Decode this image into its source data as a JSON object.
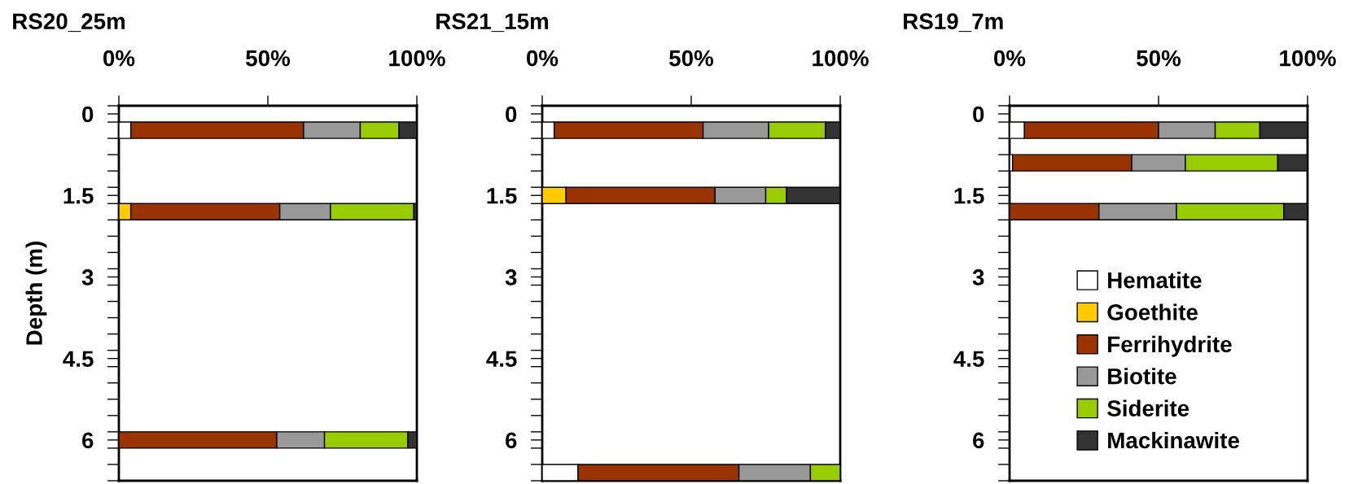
{
  "chart_data": [
    {
      "type": "bar",
      "orientation": "horizontal",
      "stacked": true,
      "title": "RS20_25m",
      "ylabel": "Depth (m)",
      "x": [
        0.3,
        1.8,
        6.0
      ],
      "xlim": [
        0,
        100
      ],
      "xticks": [
        {
          "value": 0,
          "label": "0%"
        },
        {
          "value": 50,
          "label": "50%"
        },
        {
          "value": 100,
          "label": "100%"
        }
      ],
      "ylim": [
        6.75,
        -0.15
      ],
      "yticks": [
        0,
        1.5,
        3,
        4.5,
        6,
        {
          "value": -0.15,
          "label": null
        },
        {
          "value": 0.15,
          "label": null
        },
        {
          "value": 0.45,
          "label": null
        },
        {
          "value": 0.75,
          "label": null
        },
        {
          "value": 1.05,
          "label": null
        },
        {
          "value": 1.35,
          "label": null
        },
        {
          "value": 1.65,
          "label": null
        },
        {
          "value": 1.95,
          "label": null
        },
        {
          "value": 2.25,
          "label": null
        },
        {
          "value": 2.55,
          "label": null
        },
        {
          "value": 2.85,
          "label": null
        },
        {
          "value": 3.15,
          "label": null
        },
        {
          "value": 3.45,
          "label": null
        },
        {
          "value": 3.75,
          "label": null
        },
        {
          "value": 4.05,
          "label": null
        },
        {
          "value": 4.35,
          "label": null
        },
        {
          "value": 4.65,
          "label": null
        },
        {
          "value": 4.95,
          "label": null
        },
        {
          "value": 5.25,
          "label": null
        },
        {
          "value": 5.55,
          "label": null
        },
        {
          "value": 5.85,
          "label": null
        },
        {
          "value": 6.15,
          "label": null
        },
        {
          "value": 6.45,
          "label": null
        },
        {
          "value": 6.75,
          "label": null
        }
      ],
      "series": [
        {
          "color": "#ffffff",
          "values": [
            4,
            null,
            null
          ]
        },
        {
          "color": "#ffcc00",
          "values": [
            null,
            4,
            null
          ]
        },
        {
          "color": "#993300",
          "values": [
            58,
            50,
            53
          ]
        },
        {
          "color": "#999999",
          "values": [
            19,
            17,
            16
          ]
        },
        {
          "color": "#99cc00",
          "values": [
            13,
            28,
            28
          ]
        },
        {
          "color": "#333333",
          "values": [
            6,
            1,
            3
          ]
        }
      ]
    },
    {
      "type": "bar",
      "orientation": "horizontal",
      "stacked": true,
      "title": "RS21_15m",
      "x": [
        0.3,
        1.5,
        6.6
      ],
      "xlim": [
        0,
        100
      ],
      "xticks": [
        {
          "value": 0,
          "label": "0%"
        },
        {
          "value": 50,
          "label": "50%"
        },
        {
          "value": 100,
          "label": "100%"
        }
      ],
      "ylim": [
        6.75,
        -0.15
      ],
      "yticks": [
        0,
        1.5,
        3,
        4.5,
        6,
        {
          "value": -0.15,
          "label": null
        },
        {
          "value": 0.15,
          "label": null
        },
        {
          "value": 0.45,
          "label": null
        },
        {
          "value": 0.75,
          "label": null
        },
        {
          "value": 1.05,
          "label": null
        },
        {
          "value": 1.35,
          "label": null
        },
        {
          "value": 1.65,
          "label": null
        },
        {
          "value": 1.95,
          "label": null
        },
        {
          "value": 2.25,
          "label": null
        },
        {
          "value": 2.55,
          "label": null
        },
        {
          "value": 2.85,
          "label": null
        },
        {
          "value": 3.15,
          "label": null
        },
        {
          "value": 3.45,
          "label": null
        },
        {
          "value": 3.75,
          "label": null
        },
        {
          "value": 4.05,
          "label": null
        },
        {
          "value": 4.35,
          "label": null
        },
        {
          "value": 4.65,
          "label": null
        },
        {
          "value": 4.95,
          "label": null
        },
        {
          "value": 5.25,
          "label": null
        },
        {
          "value": 5.55,
          "label": null
        },
        {
          "value": 5.85,
          "label": null
        },
        {
          "value": 6.15,
          "label": null
        },
        {
          "value": 6.45,
          "label": null
        },
        {
          "value": 6.75,
          "label": null
        }
      ],
      "series": [
        {
          "color": "#ffffff",
          "values": [
            4,
            null,
            12
          ]
        },
        {
          "color": "#ffcc00",
          "values": [
            null,
            8,
            null
          ]
        },
        {
          "color": "#993300",
          "values": [
            50,
            50,
            54
          ]
        },
        {
          "color": "#999999",
          "values": [
            22,
            17,
            24
          ]
        },
        {
          "color": "#99cc00",
          "values": [
            19,
            7,
            10
          ]
        },
        {
          "color": "#333333",
          "values": [
            5,
            18,
            null
          ]
        }
      ]
    },
    {
      "type": "bar",
      "orientation": "horizontal",
      "stacked": true,
      "title": "RS19_7m",
      "x": [
        0.3,
        0.9,
        1.8
      ],
      "xlim": [
        0,
        100
      ],
      "xticks": [
        {
          "value": 0,
          "label": "0%"
        },
        {
          "value": 50,
          "label": "50%"
        },
        {
          "value": 100,
          "label": "100%"
        }
      ],
      "ylim": [
        6.75,
        -0.15
      ],
      "yticks": [
        0,
        1.5,
        3,
        4.5,
        6,
        {
          "value": -0.15,
          "label": null
        },
        {
          "value": 0.15,
          "label": null
        },
        {
          "value": 0.45,
          "label": null
        },
        {
          "value": 0.75,
          "label": null
        },
        {
          "value": 1.05,
          "label": null
        },
        {
          "value": 1.35,
          "label": null
        },
        {
          "value": 1.65,
          "label": null
        },
        {
          "value": 1.95,
          "label": null
        },
        {
          "value": 2.25,
          "label": null
        },
        {
          "value": 2.55,
          "label": null
        },
        {
          "value": 2.85,
          "label": null
        },
        {
          "value": 3.15,
          "label": null
        },
        {
          "value": 3.45,
          "label": null
        },
        {
          "value": 3.75,
          "label": null
        },
        {
          "value": 4.05,
          "label": null
        },
        {
          "value": 4.35,
          "label": null
        },
        {
          "value": 4.65,
          "label": null
        },
        {
          "value": 4.95,
          "label": null
        },
        {
          "value": 5.25,
          "label": null
        },
        {
          "value": 5.55,
          "label": null
        },
        {
          "value": 5.85,
          "label": null
        },
        {
          "value": 6.15,
          "label": null
        },
        {
          "value": 6.45,
          "label": null
        },
        {
          "value": 6.75,
          "label": null
        }
      ],
      "legend": "bottom",
      "series": [
        {
          "name": "Hematite",
          "color": "#ffffff",
          "values": [
            5,
            1,
            null
          ]
        },
        {
          "name": "Goethite",
          "color": "#ffcc00",
          "values": [
            null,
            null,
            null
          ]
        },
        {
          "name": "Ferrihydrite",
          "color": "#993300",
          "values": [
            45,
            40,
            30
          ]
        },
        {
          "name": "Biotite",
          "color": "#999999",
          "values": [
            19,
            18,
            26
          ]
        },
        {
          "name": "Siderite",
          "color": "#99cc00",
          "values": [
            15,
            31,
            36
          ]
        },
        {
          "name": "Mackinawite",
          "color": "#333333",
          "values": [
            16,
            10,
            8
          ]
        }
      ]
    }
  ]
}
